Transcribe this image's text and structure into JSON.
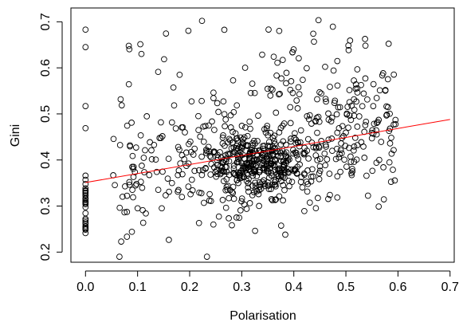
{
  "chart_data": {
    "type": "scatter",
    "title": "",
    "xlabel": "Polarisation",
    "ylabel": "Gini",
    "xlim": [
      -0.028,
      0.708
    ],
    "ylim": [
      0.178,
      0.73
    ],
    "xticks": [
      "0.0",
      "0.1",
      "0.2",
      "0.3",
      "0.4",
      "0.5",
      "0.6",
      "0.7"
    ],
    "yticks": [
      "0.2",
      "0.3",
      "0.4",
      "0.5",
      "0.6",
      "0.7"
    ],
    "point_count": 820,
    "fit_line": {
      "x": [
        0.0,
        0.7
      ],
      "y": [
        0.351,
        0.488
      ],
      "color": "#ff0000"
    },
    "point_color": "#000000",
    "axis_style": "box",
    "grid": false,
    "legend": "none"
  }
}
